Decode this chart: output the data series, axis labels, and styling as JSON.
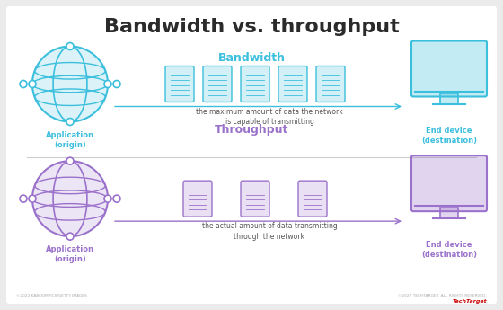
{
  "title": "Bandwidth vs. throughput",
  "title_fontsize": 16,
  "title_color": "#2b2b2b",
  "bg_color": "#ebebeb",
  "card_bg": "#ffffff",
  "bandwidth_label": "Bandwidth",
  "bandwidth_color": "#3bbfdd",
  "bandwidth_desc": "the maximum amount of data the network\nis capable of transmitting",
  "throughput_label": "Throughput",
  "throughput_color": "#9b72cb",
  "throughput_desc": "the actual amount of data transmitting\nthrough the network",
  "app_label": "Application\n(origin)",
  "device_label": "End device\n(destination)",
  "footer_left": "©2022 KABOOMPICS/GETTY IMAGES",
  "footer_right": "©2022 TECHTARGET. ALL RIGHTS RESERVED.",
  "divider_color": "#cccccc",
  "bw_packets": 5,
  "tp_packets": 3
}
